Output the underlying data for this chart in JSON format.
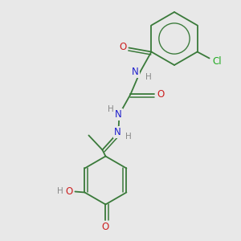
{
  "bg_color": "#e8e8e8",
  "bond_color": "#3a7a3a",
  "N_color": "#2020cc",
  "O_color": "#cc2020",
  "Cl_color": "#22aa22",
  "H_color": "#888888",
  "fig_size": [
    3.0,
    3.0
  ],
  "dpi": 100,
  "xlim": [
    0.3,
    3.2
  ],
  "ylim": [
    0.2,
    3.2
  ]
}
